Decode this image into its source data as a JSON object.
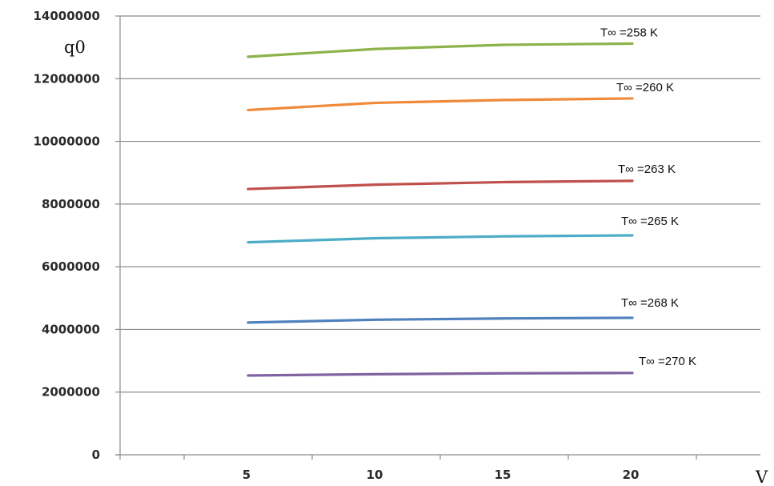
{
  "chart_data": {
    "type": "line",
    "xlabel": "V",
    "ylabel": "q0",
    "x": [
      5,
      10,
      15,
      20
    ],
    "xlim": [
      0,
      25
    ],
    "ylim": [
      0,
      14000000
    ],
    "x_ticks": [
      "5",
      "10",
      "15",
      "20"
    ],
    "y_ticks": [
      "0",
      "2000000",
      "4000000",
      "6000000",
      "8000000",
      "10000000",
      "12000000",
      "14000000"
    ],
    "grid": "horizontal",
    "legend": "none; series labelled at right end of each line",
    "series": [
      {
        "name": "T∞ =258 K",
        "values": [
          12700000,
          12950000,
          13080000,
          13120000
        ],
        "color": "#8cb24a"
      },
      {
        "name": "T∞ =260 K",
        "values": [
          11000000,
          11230000,
          11320000,
          11370000
        ],
        "color": "#ef8a3a"
      },
      {
        "name": "T∞ =263 K",
        "values": [
          8480000,
          8620000,
          8700000,
          8740000
        ],
        "color": "#c0504d"
      },
      {
        "name": "T∞ =265 K",
        "values": [
          6780000,
          6910000,
          6970000,
          7000000
        ],
        "color": "#4bacc6"
      },
      {
        "name": "T∞ =268 K",
        "values": [
          4220000,
          4310000,
          4350000,
          4370000
        ],
        "color": "#4f81bd"
      },
      {
        "name": "T∞ =270 K",
        "values": [
          2530000,
          2570000,
          2600000,
          2610000
        ],
        "color": "#8064a2"
      }
    ]
  }
}
